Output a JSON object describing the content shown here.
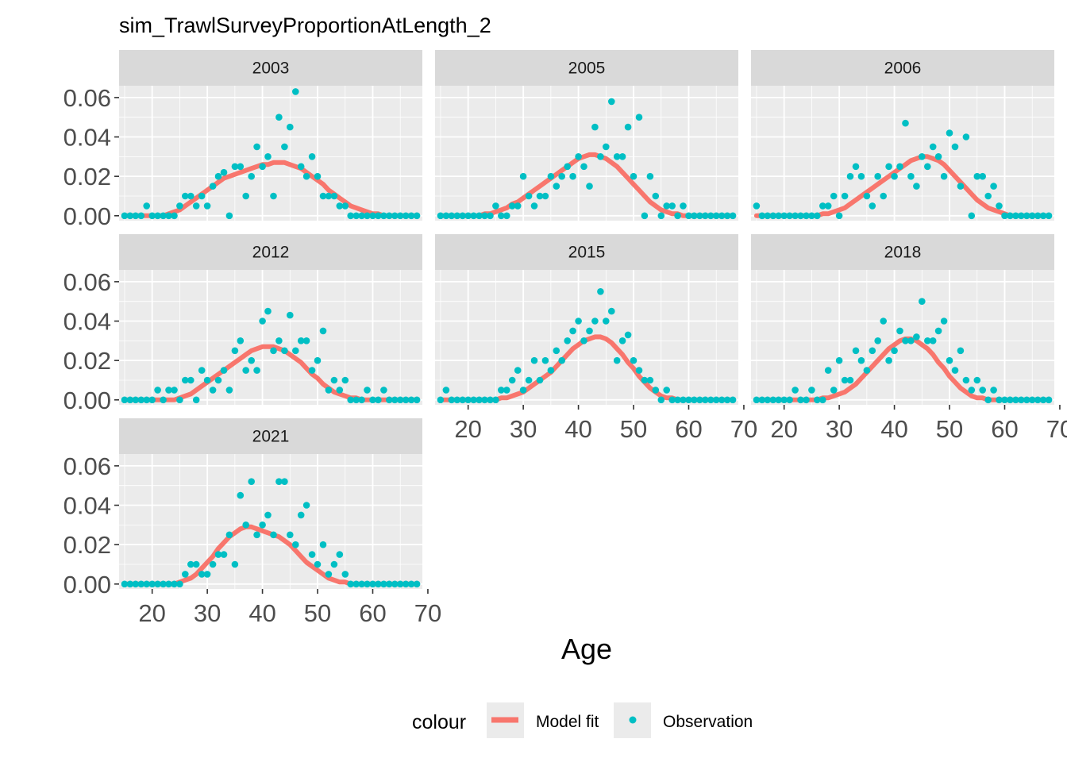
{
  "chart_data": {
    "type": "scatter",
    "title": "sim_TrawlSurveyProportionAtLength_2",
    "xlabel": "Age",
    "ylabel": "",
    "xlim": [
      14,
      69
    ],
    "ylim": [
      -0.0025,
      0.066
    ],
    "x_ticks": [
      20,
      30,
      40,
      50,
      60,
      70
    ],
    "y_ticks": [
      0.0,
      0.02,
      0.04,
      0.06
    ],
    "y_tick_labels": [
      "0.00",
      "0.02",
      "0.04",
      "0.06"
    ],
    "grid": true,
    "legend": {
      "position": "bottom",
      "title": "colour",
      "entries": [
        {
          "label": "Model fit",
          "color": "#F8766D",
          "kind": "line"
        },
        {
          "label": "Observation",
          "color": "#00BFC4",
          "kind": "point"
        }
      ]
    },
    "colors": {
      "model": "#F8766D",
      "observation": "#00BFC4",
      "panel_bg": "#EBEBEB",
      "strip_bg": "#D9D9D9"
    },
    "x": [
      15,
      16,
      17,
      18,
      19,
      20,
      21,
      22,
      23,
      24,
      25,
      26,
      27,
      28,
      29,
      30,
      31,
      32,
      33,
      34,
      35,
      36,
      37,
      38,
      39,
      40,
      41,
      42,
      43,
      44,
      45,
      46,
      47,
      48,
      49,
      50,
      51,
      52,
      53,
      54,
      55,
      56,
      57,
      58,
      59,
      60,
      61,
      62,
      63,
      64,
      65,
      66,
      67,
      68
    ],
    "panels": [
      {
        "name": "2003",
        "observation": [
          0,
          0,
          0,
          0,
          0.005,
          0,
          0,
          0,
          0,
          0,
          0.005,
          0.01,
          0.01,
          0.005,
          0.01,
          0.005,
          0.015,
          0.02,
          0.022,
          0,
          0.025,
          0.025,
          0.01,
          0.02,
          0.035,
          0.025,
          0.03,
          0.01,
          0.05,
          0.035,
          0.045,
          0.063,
          0.025,
          0.02,
          0.03,
          0.02,
          0.01,
          0.01,
          0.01,
          0.005,
          0.005,
          0,
          0,
          0,
          0,
          0,
          0,
          0,
          0,
          0,
          0,
          0,
          0,
          0
        ],
        "model": [
          0,
          0,
          0,
          0,
          0,
          0,
          0,
          0,
          0.001,
          0.002,
          0.003,
          0.005,
          0.007,
          0.009,
          0.011,
          0.013,
          0.015,
          0.017,
          0.019,
          0.02,
          0.021,
          0.022,
          0.023,
          0.024,
          0.025,
          0.026,
          0.026,
          0.027,
          0.027,
          0.027,
          0.026,
          0.025,
          0.024,
          0.022,
          0.02,
          0.018,
          0.016,
          0.013,
          0.011,
          0.009,
          0.007,
          0.005,
          0.004,
          0.003,
          0.002,
          0.001,
          0.001,
          0,
          0,
          0,
          0,
          0,
          0,
          0
        ]
      },
      {
        "name": "2005",
        "observation": [
          0,
          0,
          0,
          0,
          0,
          0,
          0,
          0,
          0,
          0,
          0.005,
          0,
          0,
          0.005,
          0.005,
          0.02,
          0.01,
          0.005,
          0.01,
          0.01,
          0.02,
          0.015,
          0.02,
          0.025,
          0.02,
          0.03,
          0.025,
          0.015,
          0.045,
          0.03,
          0.035,
          0.058,
          0.03,
          0.03,
          0.045,
          0.02,
          0.05,
          0,
          0.02,
          0.01,
          0,
          0.005,
          0.005,
          0,
          0.005,
          0,
          0,
          0,
          0,
          0,
          0,
          0,
          0,
          0
        ],
        "model": [
          0,
          0,
          0,
          0,
          0,
          0,
          0,
          0,
          0.001,
          0.001,
          0.002,
          0.003,
          0.004,
          0.006,
          0.007,
          0.009,
          0.011,
          0.013,
          0.015,
          0.017,
          0.019,
          0.021,
          0.023,
          0.025,
          0.027,
          0.029,
          0.03,
          0.031,
          0.031,
          0.03,
          0.029,
          0.027,
          0.025,
          0.022,
          0.019,
          0.016,
          0.013,
          0.01,
          0.007,
          0.005,
          0.003,
          0.002,
          0.001,
          0.001,
          0,
          0,
          0,
          0,
          0,
          0,
          0,
          0,
          0,
          0
        ]
      },
      {
        "name": "2006",
        "observation": [
          0.005,
          0,
          0,
          0,
          0,
          0,
          0,
          0,
          0,
          0,
          0,
          0,
          0.005,
          0.005,
          0.01,
          0,
          0.01,
          0.02,
          0.025,
          0.02,
          0.01,
          0.005,
          0.02,
          0.01,
          0.025,
          0.02,
          0.025,
          0.047,
          0.02,
          0.015,
          0.03,
          0.025,
          0.035,
          0.03,
          0.02,
          0.042,
          0.035,
          0.015,
          0.04,
          0,
          0.02,
          0.02,
          0.01,
          0.015,
          0.005,
          0,
          0,
          0,
          0,
          0,
          0,
          0,
          0,
          0
        ],
        "model": [
          0,
          0,
          0,
          0,
          0,
          0,
          0,
          0,
          0,
          0,
          0,
          0,
          0.001,
          0.001,
          0.002,
          0.003,
          0.004,
          0.006,
          0.008,
          0.01,
          0.012,
          0.014,
          0.016,
          0.018,
          0.02,
          0.022,
          0.024,
          0.026,
          0.028,
          0.029,
          0.03,
          0.03,
          0.029,
          0.028,
          0.026,
          0.023,
          0.02,
          0.017,
          0.014,
          0.011,
          0.008,
          0.006,
          0.004,
          0.003,
          0.002,
          0.001,
          0,
          0,
          0,
          0,
          0,
          0,
          0,
          0,
          0
        ]
      },
      {
        "name": "2012",
        "observation": [
          0,
          0,
          0,
          0,
          0,
          0,
          0.005,
          0,
          0.005,
          0.005,
          0,
          0.01,
          0.01,
          0,
          0.015,
          0.01,
          0.005,
          0.01,
          0.015,
          0.005,
          0.025,
          0.03,
          0.015,
          0.02,
          0.015,
          0.04,
          0.045,
          0.025,
          0.03,
          0.025,
          0.043,
          0.025,
          0.03,
          0.03,
          0.015,
          0.02,
          0.035,
          0.005,
          0.01,
          0.005,
          0.01,
          0,
          0,
          0,
          0.005,
          0,
          0,
          0.005,
          0,
          0,
          0,
          0,
          0,
          0
        ],
        "model": [
          0,
          0,
          0,
          0,
          0,
          0,
          0,
          0,
          0,
          0,
          0.001,
          0.002,
          0.003,
          0.005,
          0.007,
          0.009,
          0.011,
          0.013,
          0.015,
          0.017,
          0.019,
          0.021,
          0.023,
          0.025,
          0.026,
          0.027,
          0.027,
          0.027,
          0.026,
          0.025,
          0.023,
          0.021,
          0.019,
          0.016,
          0.013,
          0.011,
          0.008,
          0.006,
          0.004,
          0.003,
          0.002,
          0.001,
          0.001,
          0,
          0,
          0,
          0,
          0,
          0,
          0,
          0,
          0,
          0,
          0
        ]
      },
      {
        "name": "2015",
        "observation": [
          0,
          0.005,
          0,
          0,
          0,
          0,
          0,
          0,
          0,
          0,
          0,
          0.005,
          0.005,
          0.01,
          0.015,
          0.005,
          0.01,
          0.02,
          0.01,
          0.02,
          0.015,
          0.025,
          0.02,
          0.03,
          0.035,
          0.04,
          0.03,
          0.035,
          0.04,
          0.055,
          0.04,
          0.045,
          0.02,
          0.03,
          0.033,
          0.02,
          0.015,
          0.01,
          0.01,
          0.005,
          0,
          0.005,
          0,
          0,
          0,
          0,
          0,
          0,
          0,
          0,
          0,
          0,
          0,
          0
        ],
        "model": [
          0,
          0,
          0,
          0,
          0,
          0,
          0,
          0,
          0,
          0,
          0,
          0.001,
          0.001,
          0.002,
          0.003,
          0.004,
          0.006,
          0.008,
          0.01,
          0.012,
          0.014,
          0.017,
          0.02,
          0.023,
          0.026,
          0.028,
          0.03,
          0.031,
          0.032,
          0.032,
          0.031,
          0.029,
          0.026,
          0.023,
          0.019,
          0.016,
          0.012,
          0.009,
          0.006,
          0.004,
          0.002,
          0.001,
          0.001,
          0,
          0,
          0,
          0,
          0,
          0,
          0,
          0,
          0,
          0,
          0
        ]
      },
      {
        "name": "2018",
        "observation": [
          0,
          0,
          0,
          0,
          0,
          0,
          0,
          0.005,
          0,
          0,
          0.005,
          0,
          0,
          0.015,
          0.005,
          0.02,
          0.01,
          0.01,
          0.025,
          0.02,
          0.015,
          0.025,
          0.03,
          0.04,
          0.02,
          0.025,
          0.035,
          0.03,
          0.03,
          0.032,
          0.05,
          0.03,
          0.03,
          0.035,
          0.04,
          0.02,
          0.015,
          0.025,
          0.01,
          0.005,
          0.01,
          0.005,
          0,
          0.005,
          0,
          0,
          0,
          0,
          0,
          0,
          0,
          0,
          0,
          0
        ],
        "model": [
          0,
          0,
          0,
          0,
          0,
          0,
          0,
          0,
          0,
          0,
          0,
          0,
          0.001,
          0.001,
          0.002,
          0.003,
          0.004,
          0.006,
          0.008,
          0.011,
          0.014,
          0.017,
          0.02,
          0.023,
          0.026,
          0.028,
          0.03,
          0.031,
          0.031,
          0.03,
          0.028,
          0.026,
          0.023,
          0.019,
          0.016,
          0.012,
          0.009,
          0.006,
          0.004,
          0.002,
          0.001,
          0.001,
          0,
          0,
          0,
          0,
          0,
          0,
          0,
          0,
          0,
          0,
          0,
          0
        ]
      },
      {
        "name": "2021",
        "observation": [
          0,
          0,
          0,
          0,
          0,
          0,
          0,
          0,
          0,
          0,
          0,
          0.005,
          0.01,
          0.01,
          0.005,
          0.005,
          0.01,
          0.015,
          0.015,
          0.025,
          0.01,
          0.045,
          0.03,
          0.052,
          0.025,
          0.03,
          0.035,
          0.025,
          0.052,
          0.052,
          0.025,
          0.02,
          0.035,
          0.04,
          0.015,
          0.01,
          0.02,
          0.005,
          0.01,
          0.015,
          0.005,
          0,
          0,
          0,
          0,
          0,
          0,
          0,
          0,
          0,
          0,
          0,
          0,
          0
        ],
        "model": [
          0,
          0,
          0,
          0,
          0,
          0,
          0,
          0,
          0,
          0,
          0.001,
          0.002,
          0.003,
          0.005,
          0.008,
          0.011,
          0.014,
          0.018,
          0.021,
          0.024,
          0.026,
          0.028,
          0.029,
          0.029,
          0.028,
          0.027,
          0.026,
          0.025,
          0.024,
          0.022,
          0.02,
          0.017,
          0.014,
          0.011,
          0.009,
          0.007,
          0.005,
          0.003,
          0.002,
          0.001,
          0.001,
          0,
          0,
          0,
          0,
          0,
          0,
          0,
          0,
          0,
          0,
          0,
          0,
          0
        ]
      }
    ]
  }
}
